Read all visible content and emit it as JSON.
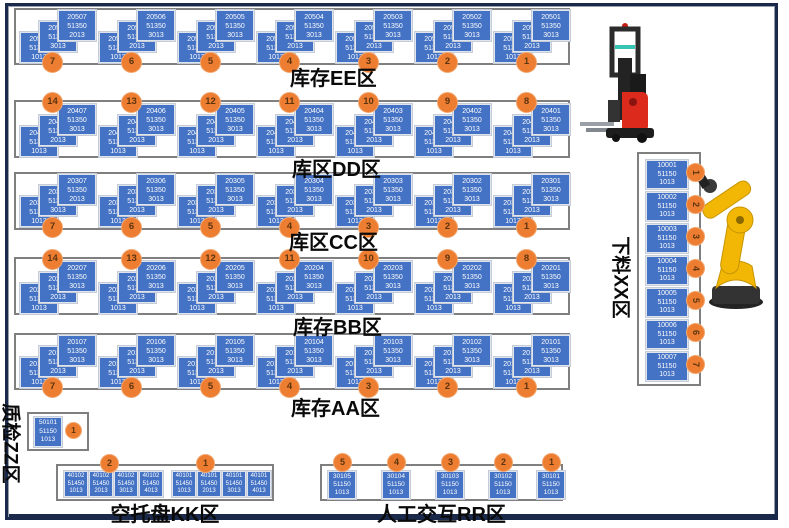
{
  "colors": {
    "box_blue": "#4472C4",
    "circle_orange": "#ED7D31",
    "container_border": "#7F7F7F",
    "frame_navy": "#1B2A4A"
  },
  "storage_rows": [
    {
      "id": "EE",
      "label": "库存EE区",
      "circle_side": "bottom",
      "stations": [
        {
          "num": "7",
          "boxes": [
            "20507 51350 1013",
            "20507 51350 3013",
            "20507 51350 2013"
          ]
        },
        {
          "num": "6",
          "boxes": [
            "20506 51350 1013",
            "20506 51350 2013",
            "20506 51350 3013"
          ]
        },
        {
          "num": "5",
          "boxes": [
            "20505 51350 1013",
            "20505 51350 2013",
            "20505 51350 3013"
          ]
        },
        {
          "num": "4",
          "boxes": [
            "20504 51350 1013",
            "20504 51350 2013",
            "20504 51350 3013"
          ]
        },
        {
          "num": "3",
          "boxes": [
            "20503 51350 1013",
            "20503 51350 2013",
            "20503 51350 3013"
          ]
        },
        {
          "num": "2",
          "boxes": [
            "20502 51350 1013",
            "20502 51350 2013",
            "20502 51350 3013"
          ]
        },
        {
          "num": "1",
          "boxes": [
            "20501 51350 1013",
            "20501 51350 2013",
            "20501 51350 3013"
          ]
        }
      ]
    },
    {
      "id": "DD",
      "label": "库区DD区",
      "circle_side": "top",
      "stations": [
        {
          "num": "14",
          "boxes": [
            "20407 51350 1013",
            "20407 51350 2013",
            "20407 51350 3013"
          ]
        },
        {
          "num": "13",
          "boxes": [
            "20406 51350 1013",
            "20406 51350 2013",
            "20406 51350 3013"
          ]
        },
        {
          "num": "12",
          "boxes": [
            "20405 51350 1013",
            "20405 51350 2013",
            "20405 51350 3013"
          ]
        },
        {
          "num": "11",
          "boxes": [
            "20404 51350 1013",
            "20404 51350 2013",
            "20404 51350 3013"
          ]
        },
        {
          "num": "10",
          "boxes": [
            "20403 51350 1013",
            "20403 51350 2013",
            "20403 51350 3013"
          ]
        },
        {
          "num": "9",
          "boxes": [
            "20402 51350 1013",
            "20402 51350 2013",
            "20402 51350 3013"
          ]
        },
        {
          "num": "8",
          "boxes": [
            "20401 51350 1013",
            "20401 51350 2013",
            "20401 51350 3013"
          ]
        }
      ]
    },
    {
      "id": "CC",
      "label": "库区CC区",
      "circle_side": "bottom",
      "stations": [
        {
          "num": "7",
          "boxes": [
            "20307 51350 1013",
            "20307 51350 3013",
            "20307 51350 2013"
          ]
        },
        {
          "num": "6",
          "boxes": [
            "20306 51350 1013",
            "20306 51350 2013",
            "20306 51350 3013"
          ]
        },
        {
          "num": "5",
          "boxes": [
            "20305 51350 1013",
            "20305 51350 2013",
            "20305 51350 3013"
          ]
        },
        {
          "num": "4",
          "boxes": [
            "20304 51350 1013",
            "20304 51350 2013",
            "20304 51350 3013"
          ]
        },
        {
          "num": "3",
          "boxes": [
            "20303 51350 1013",
            "20303 51350 2013",
            "20303 51350 3013"
          ]
        },
        {
          "num": "2",
          "boxes": [
            "20302 51350 1013",
            "20302 51350 2013",
            "20302 51350 3013"
          ]
        },
        {
          "num": "1",
          "boxes": [
            "20301 51350 1013",
            "20301 51350 2013",
            "20301 51350 3013"
          ]
        }
      ]
    },
    {
      "id": "BB",
      "label": "库存BB区",
      "circle_side": "top",
      "stations": [
        {
          "num": "14",
          "boxes": [
            "20207 51350 1013",
            "20207 51350 2013",
            "20207 51350 3013"
          ]
        },
        {
          "num": "13",
          "boxes": [
            "20206 51350 1013",
            "20206 51350 2013",
            "20206 51350 3013"
          ]
        },
        {
          "num": "12",
          "boxes": [
            "20205 51350 1013",
            "20205 51350 2013",
            "20205 51350 3013"
          ]
        },
        {
          "num": "11",
          "boxes": [
            "20204 51350 1013",
            "20204 51350 2013",
            "20204 51350 3013"
          ]
        },
        {
          "num": "10",
          "boxes": [
            "20203 51350 1013",
            "20203 51350 2013",
            "20203 51350 3013"
          ]
        },
        {
          "num": "9",
          "boxes": [
            "20202 51350 1013",
            "20202 51350 2013",
            "20202 51350 3013"
          ]
        },
        {
          "num": "8",
          "boxes": [
            "20201 51350 1013",
            "20201 51350 2013",
            "20201 51350 3013"
          ]
        }
      ]
    },
    {
      "id": "AA",
      "label": "库存AA区",
      "circle_side": "bottom",
      "stations": [
        {
          "num": "7",
          "boxes": [
            "20107 51350 1013",
            "20107 51350 2013",
            "20107 51350 3013"
          ]
        },
        {
          "num": "6",
          "boxes": [
            "20106 51350 1013",
            "20106 51350 2013",
            "20106 51350 3013"
          ]
        },
        {
          "num": "5",
          "boxes": [
            "20105 51350 1013",
            "20105 51350 2013",
            "20105 51350 3013"
          ]
        },
        {
          "num": "4",
          "boxes": [
            "20104 51350 1013",
            "20104 51350 2013",
            "20104 51350 3013"
          ]
        },
        {
          "num": "3",
          "boxes": [
            "20103 51350 1013",
            "20103 51350 2013",
            "20103 51350 3013"
          ]
        },
        {
          "num": "2",
          "boxes": [
            "20102 51350 1013",
            "20102 51350 2013",
            "20102 51350 3013"
          ]
        },
        {
          "num": "1",
          "boxes": [
            "20101 51350 1013",
            "20101 51350 2013",
            "20101 51350 3013"
          ]
        }
      ]
    }
  ],
  "xx_zone": {
    "label": "下料XX区",
    "slots": [
      {
        "num": "1",
        "box": "10001 51150 1013"
      },
      {
        "num": "2",
        "box": "10002 51150 1013"
      },
      {
        "num": "3",
        "box": "10003 51150 1013"
      },
      {
        "num": "4",
        "box": "10004 51150 1013"
      },
      {
        "num": "5",
        "box": "10005 51150 1013"
      },
      {
        "num": "6",
        "box": "10006 51150 1013"
      },
      {
        "num": "7",
        "box": "10007 51150 1013"
      }
    ]
  },
  "zz_zone": {
    "label": "质检ZZ区",
    "station": {
      "num": "1",
      "box": "50101 51150 1013"
    }
  },
  "kk_zone": {
    "label": "空托盘KK区",
    "groups": [
      {
        "num": "2",
        "boxes": [
          "40102 51450 1013",
          "40102 51450 2013",
          "40102 51450 3013",
          "40102 51450 4013"
        ]
      },
      {
        "num": "1",
        "boxes": [
          "40101 51450 1013",
          "40101 51450 2013",
          "40101 51450 3013",
          "40101 51450 4013"
        ]
      }
    ]
  },
  "rr_zone": {
    "label": "人工交互RR区",
    "stations": [
      {
        "num": "5",
        "box": "30105 51150 1013"
      },
      {
        "num": "4",
        "box": "30104 51150 1013"
      },
      {
        "num": "3",
        "box": "30103 51150 1013"
      },
      {
        "num": "2",
        "box": "30102 51150 1013"
      },
      {
        "num": "1",
        "box": "30101 51150 1013"
      }
    ]
  },
  "images": {
    "forklift": "agv-forklift",
    "robot": "robot-arm"
  }
}
